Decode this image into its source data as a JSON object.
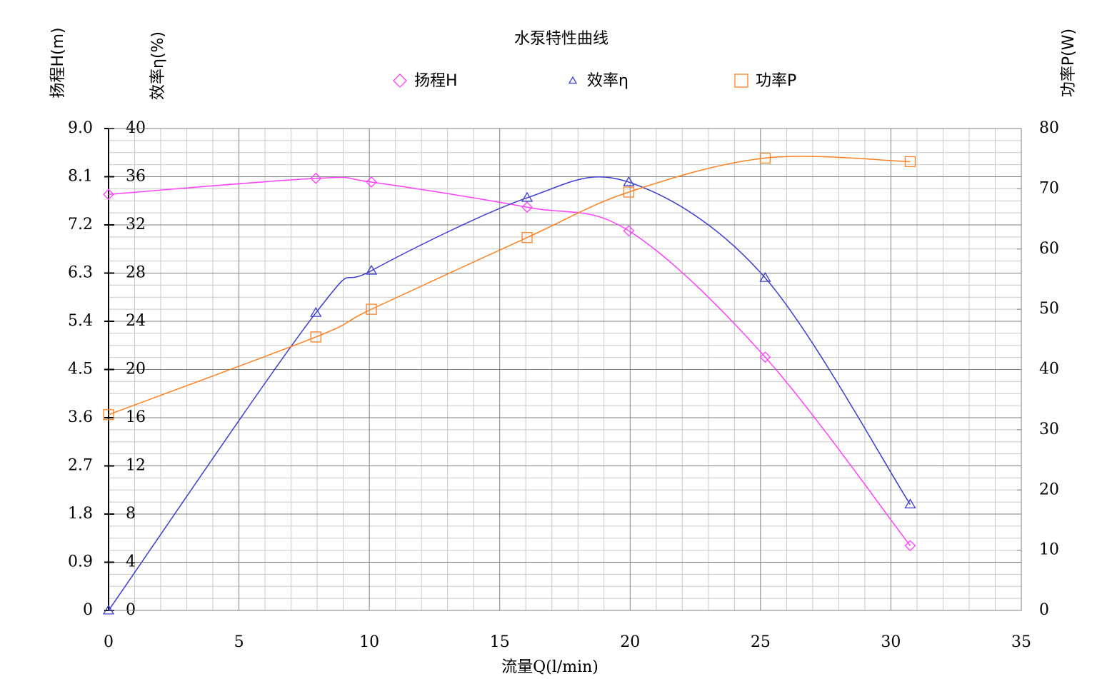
{
  "chart_data": {
    "type": "line",
    "title": "水泵特性曲线",
    "xlabel": "流量Q(l/min)",
    "ylabel": "扬程H(m)",
    "y2label": "功率P(W)",
    "y3label": "效率η(%)",
    "xlim": [
      0,
      35
    ],
    "xticks": [
      0,
      5,
      10,
      15,
      20,
      25,
      30,
      35
    ],
    "ylim": [
      0,
      9
    ],
    "yticks": [
      0,
      0.9,
      1.8,
      2.7,
      3.6,
      4.5,
      5.4,
      6.3,
      7.2,
      8.1,
      {
        "value": 9,
        "label": "9.0"
      }
    ],
    "y2lim": [
      0,
      80
    ],
    "y2ticks": [
      0,
      10,
      20,
      30,
      40,
      50,
      60,
      70,
      80
    ],
    "y3lim": [
      0,
      40
    ],
    "y3ticks": [
      0,
      4,
      8,
      12,
      16,
      20,
      24,
      28,
      32,
      36,
      40
    ],
    "grid": true,
    "minor_grid": true,
    "legend": "top",
    "series": [
      {
        "name": "扬程H",
        "color": "#ff40ff",
        "marker": "diamond",
        "axis": "y",
        "x": [
          0,
          7.95,
          10.08,
          16.05,
          19.95,
          25.18,
          30.74
        ],
        "values": [
          7.77,
          8.07,
          8.0,
          7.53,
          7.09,
          4.73,
          1.21
        ]
      },
      {
        "name": "效率η",
        "color": "#3c3cd0",
        "marker": "triangle",
        "axis": "y3",
        "x": [
          0,
          7.95,
          10.08,
          16.05,
          19.95,
          25.18,
          30.74
        ],
        "values": [
          0,
          24.7,
          28.2,
          34.25,
          35.55,
          27.6,
          8.8
        ]
      },
      {
        "name": "功率P",
        "color": "#ff8020",
        "marker": "square",
        "axis": "y2",
        "x": [
          0,
          7.95,
          10.08,
          16.05,
          19.95,
          25.18,
          30.74
        ],
        "values": [
          32.5,
          45.4,
          50.0,
          61.9,
          69.45,
          75.1,
          74.5
        ]
      }
    ]
  }
}
